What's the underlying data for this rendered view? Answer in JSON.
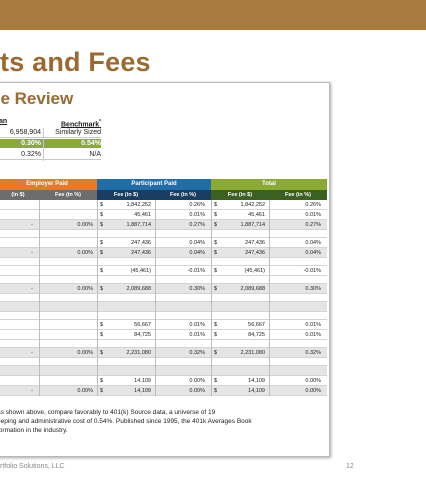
{
  "slide": {
    "heading": "ts and Fees",
    "panel_title": "ee Review",
    "footer_left": "rtfolio Solutions, LLC",
    "page_number": "12",
    "accent_color": "#a87b3e"
  },
  "benchmark": {
    "col1_header": "lan",
    "col2_header": "Benchmark",
    "col2_mark": "*",
    "rows": [
      {
        "c1": "6,958,904",
        "c2": "Similarly Sized",
        "style": "plain"
      },
      {
        "c1": "0.30%",
        "c2": "0.54%",
        "style": "green"
      },
      {
        "c1": "0.32%",
        "c2": "N/A",
        "style": "plain"
      }
    ]
  },
  "table": {
    "groups": [
      {
        "label": "Employer Paid",
        "color": "#e8792b"
      },
      {
        "label": "Participant Paid",
        "color": "#1f6ea8"
      },
      {
        "label": "Total",
        "color": "#8aaa34"
      }
    ],
    "subheaders": [
      "(in $)",
      "Fee (in %)",
      "Fee (in $)",
      "Fee (in %)",
      "Fee (in $)",
      "Fee (in %)"
    ],
    "rows": [
      {
        "type": "data",
        "shade": false,
        "emp_d": "",
        "emp_p": "",
        "pd_c": "$",
        "pd": "1,842,252",
        "pp": "0.26%",
        "td_c": "$",
        "td": "1,842,252",
        "tp": "0.26%"
      },
      {
        "type": "data",
        "shade": false,
        "emp_d": "",
        "emp_p": "",
        "pd_c": "$",
        "pd": "45,461",
        "pp": "0.01%",
        "td_c": "$",
        "td": "45,461",
        "tp": "0.01%"
      },
      {
        "type": "data",
        "shade": true,
        "emp_d": "-",
        "emp_p": "0.00%",
        "pd_c": "$",
        "pd": "1,887,714",
        "pp": "0.27%",
        "td_c": "$",
        "td": "1,887,714",
        "tp": "0.27%"
      },
      {
        "type": "gap"
      },
      {
        "type": "data",
        "shade": false,
        "emp_d": "",
        "emp_p": "",
        "pd_c": "$",
        "pd": "247,436",
        "pp": "0.04%",
        "td_c": "$",
        "td": "247,436",
        "tp": "0.04%"
      },
      {
        "type": "data",
        "shade": true,
        "emp_d": "-",
        "emp_p": "0.00%",
        "pd_c": "$",
        "pd": "247,436",
        "pp": "0.04%",
        "td_c": "$",
        "td": "247,436",
        "tp": "0.04%"
      },
      {
        "type": "gap"
      },
      {
        "type": "data",
        "shade": false,
        "emp_d": "",
        "emp_p": "",
        "pd_c": "$",
        "pd": "(45,461)",
        "pp": "-0.01%",
        "td_c": "$",
        "td": "(45,461)",
        "tp": "-0.01%"
      },
      {
        "type": "gap"
      },
      {
        "type": "data",
        "shade": true,
        "emp_d": "-",
        "emp_p": "0.00%",
        "pd_c": "$",
        "pd": "2,089,688",
        "pp": "0.30%",
        "td_c": "$",
        "td": "2,089,688",
        "tp": "0.30%"
      },
      {
        "type": "gap"
      },
      {
        "type": "shadeonly"
      },
      {
        "type": "gap"
      },
      {
        "type": "data",
        "shade": false,
        "emp_d": "",
        "emp_p": "",
        "pd_c": "$",
        "pd": "56,667",
        "pp": "0.01%",
        "td_c": "$",
        "td": "56,667",
        "tp": "0.01%"
      },
      {
        "type": "data",
        "shade": false,
        "emp_d": "",
        "emp_p": "",
        "pd_c": "$",
        "pd": "84,725",
        "pp": "0.01%",
        "td_c": "$",
        "td": "84,725",
        "tp": "0.01%"
      },
      {
        "type": "gap"
      },
      {
        "type": "data",
        "shade": true,
        "emp_d": "-",
        "emp_p": "0.00%",
        "pd_c": "$",
        "pd": "2,231,080",
        "pp": "0.32%",
        "td_c": "$",
        "td": "2,231,080",
        "tp": "0.32%"
      },
      {
        "type": "gap"
      },
      {
        "type": "shadeonly"
      },
      {
        "type": "data",
        "shade": false,
        "emp_d": "",
        "emp_p": "",
        "pd_c": "$",
        "pd": "14,109",
        "pp": "0.00%",
        "td_c": "$",
        "td": "14,109",
        "tp": "0.00%"
      },
      {
        "type": "data",
        "shade": true,
        "emp_d": "-",
        "emp_p": "0.00%",
        "pd_c": "$",
        "pd": "14,109",
        "pp": "0.00%",
        "td_c": "$",
        "td": "14,109",
        "tp": "0.00%"
      }
    ]
  },
  "footnote": {
    "lines": [
      "as shown above, compare favorably to 401(k) Source data,  a universe of 19",
      "eeping and administrative cost of 0.54%. Published since 1995, the 401k Averages Book",
      "formation in the industry."
    ]
  }
}
